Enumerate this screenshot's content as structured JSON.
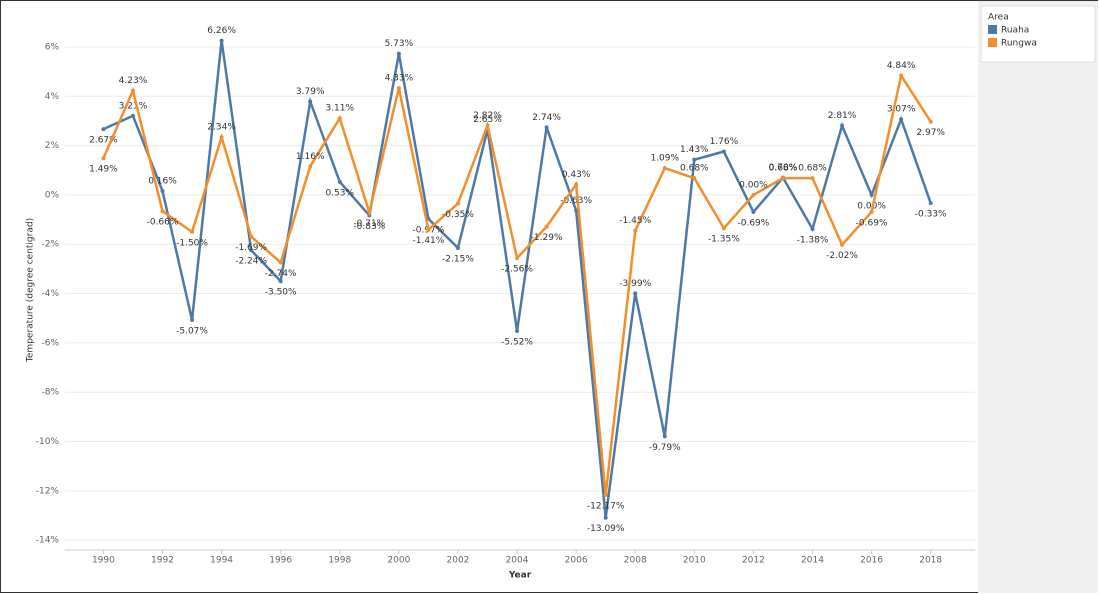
{
  "chart_data": {
    "type": "line",
    "x_label": "Year",
    "y_label": "Temperature (degree centigrad)",
    "legend_title": "Area",
    "x": [
      1990,
      1991,
      1992,
      1993,
      1994,
      1995,
      1996,
      1997,
      1998,
      1999,
      2000,
      2001,
      2002,
      2003,
      2004,
      2005,
      2006,
      2007,
      2008,
      2009,
      2010,
      2011,
      2012,
      2013,
      2014,
      2015,
      2016,
      2017,
      2018
    ],
    "series": [
      {
        "name": "Ruaha",
        "color": "#4e79a7",
        "values": [
          2.67,
          3.21,
          0.16,
          -5.07,
          6.26,
          -2.24,
          -3.5,
          3.79,
          0.53,
          -0.83,
          5.73,
          -0.97,
          -2.15,
          2.65,
          -5.52,
          2.74,
          -0.63,
          -13.09,
          -3.99,
          -9.79,
          1.43,
          1.76,
          -0.69,
          0.7,
          -1.38,
          2.81,
          0.0,
          3.07,
          -0.33
        ],
        "value_labels": [
          "2.67%",
          "3.21%",
          "0.16%",
          "-5.07%",
          "6.26%",
          "-2.24%",
          "-3.50%",
          "3.79%",
          "0.53%",
          "-0.83%",
          "5.73%",
          "-0.97%",
          "-2.15%",
          "2.65%",
          "-5.52%",
          "2.74%",
          "-0.63%",
          "-13.09%",
          "-3.99%",
          "-9.79%",
          "1.43%",
          "1.76%",
          "-0.69%",
          "0.70%",
          "-1.38%",
          "2.81%",
          "0.00%",
          "3.07%",
          "-0.33%"
        ]
      },
      {
        "name": "Rungwa",
        "color": "#f28e2b",
        "values": [
          1.49,
          4.23,
          -0.66,
          -1.5,
          2.34,
          -1.69,
          -2.74,
          1.16,
          3.11,
          -0.71,
          4.33,
          -1.41,
          -0.35,
          2.82,
          -2.56,
          -1.29,
          0.43,
          -12.17,
          -1.45,
          1.09,
          0.68,
          -1.35,
          0.0,
          0.68,
          0.68,
          -2.02,
          -0.69,
          4.84,
          2.97
        ],
        "value_labels": [
          "1.49%",
          "4.23%",
          "-0.66%",
          "-1.50%",
          "2.34%",
          "-1.69%",
          "-2.74%",
          "1.16%",
          "3.11%",
          "-0.71%",
          "4.33%",
          "-1.41%",
          "-0.35%",
          "2.82%",
          "-2.56%",
          "-1.29%",
          "0.43%",
          "-12.17%",
          "-1.45%",
          "1.09%",
          "0.68%",
          "-1.35%",
          "0.00%",
          "0.68%",
          "0.68%",
          "-2.02%",
          "-0.69%",
          "4.84%",
          "2.97%"
        ]
      }
    ],
    "xlim": [
      1988.7,
      2019.5
    ],
    "xticks": [
      1990,
      1992,
      1994,
      1996,
      1998,
      2000,
      2002,
      2004,
      2006,
      2008,
      2010,
      2012,
      2014,
      2016,
      2018
    ],
    "ylim": [
      -14.4,
      7.5
    ],
    "yticks": [
      {
        "value": 6,
        "label": "6%"
      },
      {
        "value": 4,
        "label": "4%"
      },
      {
        "value": 2,
        "label": "2%"
      },
      {
        "value": 0,
        "label": "0%"
      },
      {
        "value": -2,
        "label": "-2%"
      },
      {
        "value": -4,
        "label": "-4%"
      },
      {
        "value": -6,
        "label": "-6%"
      },
      {
        "value": -8,
        "label": "-8%"
      },
      {
        "value": -10,
        "label": "-10%"
      },
      {
        "value": -12,
        "label": "-12%"
      },
      {
        "value": -14,
        "label": "-14%"
      }
    ],
    "grid": true
  }
}
